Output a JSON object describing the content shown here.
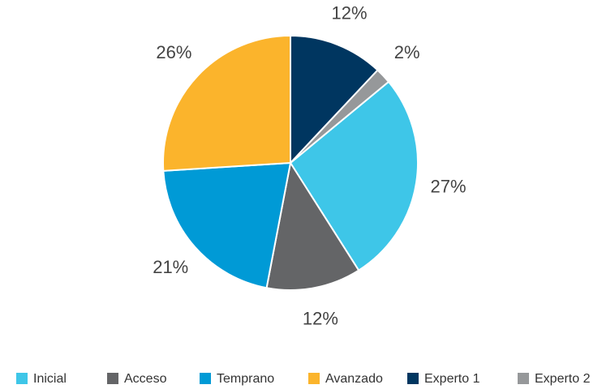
{
  "chart_data": {
    "type": "pie",
    "categories": [
      "Inicial",
      "Acceso",
      "Temprano",
      "Avanzado",
      "Experto 1",
      "Experto 2"
    ],
    "values": [
      27,
      12,
      21,
      26,
      12,
      2
    ],
    "value_labels": [
      "27%",
      "12%",
      "21%",
      "26%",
      "12%",
      "2%"
    ],
    "colors": [
      "#3ec6e8",
      "#646567",
      "#009ad6",
      "#fbb42c",
      "#003660",
      "#96989a"
    ],
    "legend": "bottom"
  }
}
